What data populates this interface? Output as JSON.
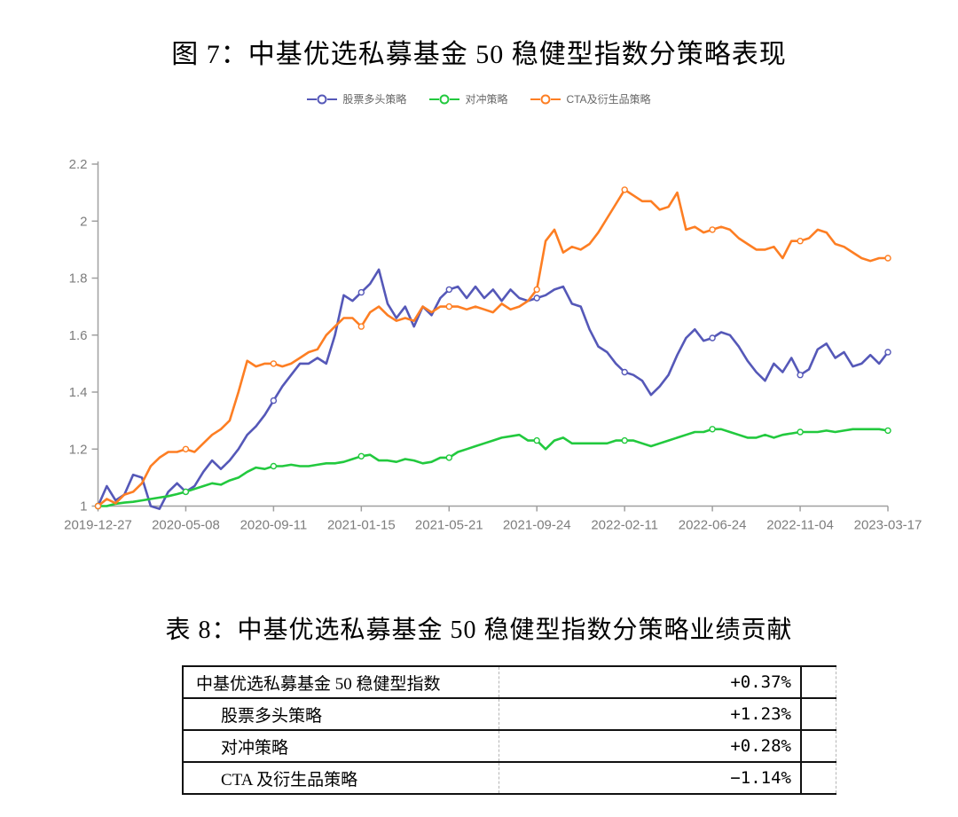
{
  "figure": {
    "title": "图 7：中基优选私募基金 50 稳健型指数分策略表现"
  },
  "chart_data": {
    "type": "line",
    "title": "图 7：中基优选私募基金 50 稳健型指数分策略表现",
    "legend_position": "top",
    "grid": false,
    "ylim": [
      1,
      2.2
    ],
    "y_ticks": [
      1,
      1.2,
      1.4,
      1.6,
      1.8,
      2,
      2.2
    ],
    "y_tick_labels": [
      "1",
      "1.2",
      "1.4",
      "1.6",
      "1.8",
      "2",
      "2.2"
    ],
    "x_tick_labels": [
      "2019-12-27",
      "2020-05-08",
      "2020-09-11",
      "2021-01-15",
      "2021-05-21",
      "2021-09-24",
      "2022-02-11",
      "2022-06-24",
      "2022-11-04",
      "2023-03-17"
    ],
    "colors": {
      "axis": "#a0a0a0",
      "tick_text": "#7d7d7d",
      "legend_text": "#666666"
    },
    "series": [
      {
        "name": "股票多头策略",
        "color": "#5558b8",
        "values": [
          1.0,
          1.07,
          1.02,
          1.04,
          1.11,
          1.1,
          1.0,
          0.99,
          1.05,
          1.08,
          1.05,
          1.07,
          1.12,
          1.16,
          1.13,
          1.16,
          1.2,
          1.25,
          1.28,
          1.32,
          1.37,
          1.42,
          1.46,
          1.5,
          1.5,
          1.52,
          1.5,
          1.6,
          1.74,
          1.72,
          1.75,
          1.78,
          1.83,
          1.71,
          1.66,
          1.7,
          1.63,
          1.7,
          1.67,
          1.73,
          1.76,
          1.77,
          1.73,
          1.77,
          1.73,
          1.76,
          1.72,
          1.76,
          1.73,
          1.72,
          1.73,
          1.74,
          1.76,
          1.77,
          1.71,
          1.7,
          1.62,
          1.56,
          1.54,
          1.5,
          1.47,
          1.46,
          1.44,
          1.39,
          1.42,
          1.46,
          1.53,
          1.59,
          1.62,
          1.58,
          1.59,
          1.61,
          1.6,
          1.56,
          1.51,
          1.47,
          1.44,
          1.5,
          1.47,
          1.52,
          1.46,
          1.48,
          1.55,
          1.57,
          1.52,
          1.54,
          1.49,
          1.5,
          1.53,
          1.5,
          1.54
        ]
      },
      {
        "name": "对冲策略",
        "color": "#22c93e",
        "values": [
          1.0,
          1.0,
          1.008,
          1.012,
          1.015,
          1.02,
          1.025,
          1.03,
          1.035,
          1.042,
          1.05,
          1.06,
          1.07,
          1.08,
          1.075,
          1.09,
          1.1,
          1.12,
          1.135,
          1.13,
          1.14,
          1.14,
          1.145,
          1.14,
          1.14,
          1.145,
          1.15,
          1.15,
          1.155,
          1.165,
          1.175,
          1.18,
          1.16,
          1.16,
          1.155,
          1.165,
          1.16,
          1.15,
          1.155,
          1.17,
          1.17,
          1.19,
          1.2,
          1.21,
          1.22,
          1.23,
          1.24,
          1.245,
          1.25,
          1.23,
          1.23,
          1.2,
          1.23,
          1.24,
          1.22,
          1.22,
          1.22,
          1.22,
          1.22,
          1.23,
          1.23,
          1.23,
          1.22,
          1.21,
          1.22,
          1.23,
          1.24,
          1.25,
          1.26,
          1.26,
          1.27,
          1.27,
          1.26,
          1.25,
          1.24,
          1.24,
          1.25,
          1.24,
          1.25,
          1.255,
          1.26,
          1.26,
          1.26,
          1.265,
          1.26,
          1.265,
          1.27,
          1.27,
          1.27,
          1.27,
          1.265
        ]
      },
      {
        "name": "CTA及衍生品策略",
        "color": "#fd7e23",
        "values": [
          1.0,
          1.025,
          1.01,
          1.04,
          1.05,
          1.08,
          1.14,
          1.17,
          1.19,
          1.19,
          1.2,
          1.19,
          1.22,
          1.25,
          1.27,
          1.3,
          1.4,
          1.51,
          1.49,
          1.5,
          1.5,
          1.49,
          1.5,
          1.52,
          1.54,
          1.55,
          1.6,
          1.63,
          1.66,
          1.66,
          1.63,
          1.68,
          1.7,
          1.67,
          1.65,
          1.66,
          1.65,
          1.7,
          1.68,
          1.7,
          1.7,
          1.7,
          1.69,
          1.7,
          1.69,
          1.68,
          1.71,
          1.69,
          1.7,
          1.72,
          1.76,
          1.93,
          1.97,
          1.89,
          1.91,
          1.9,
          1.92,
          1.96,
          2.01,
          2.06,
          2.11,
          2.09,
          2.07,
          2.07,
          2.04,
          2.05,
          2.1,
          1.97,
          1.98,
          1.96,
          1.97,
          1.98,
          1.97,
          1.94,
          1.92,
          1.9,
          1.9,
          1.91,
          1.87,
          1.93,
          1.93,
          1.94,
          1.97,
          1.96,
          1.92,
          1.91,
          1.89,
          1.87,
          1.86,
          1.87,
          1.87
        ]
      }
    ]
  },
  "table": {
    "title": "表 8：中基优选私募基金 50 稳健型指数分策略业绩贡献",
    "rows": [
      {
        "label": "中基优选私募基金 50 稳健型指数",
        "value": "+0.37%",
        "indent": false
      },
      {
        "label": "股票多头策略",
        "value": "+1.23%",
        "indent": true
      },
      {
        "label": "对冲策略",
        "value": "+0.28%",
        "indent": true
      },
      {
        "label": "CTA 及衍生品策略",
        "value": "−1.14%",
        "indent": true
      }
    ]
  }
}
